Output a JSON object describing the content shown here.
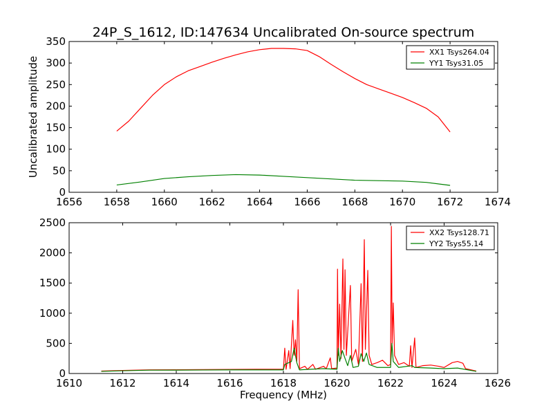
{
  "chart_data": [
    {
      "type": "line",
      "title": "24P_S_1612, ID:147634 Uncalibrated On-source spectrum",
      "xlabel": "",
      "ylabel": "Uncalibrated amplitude",
      "xlim": [
        1656,
        1674
      ],
      "ylim": [
        0,
        350
      ],
      "xticks": [
        1656,
        1658,
        1660,
        1662,
        1664,
        1666,
        1668,
        1670,
        1672,
        1674
      ],
      "yticks": [
        0,
        50,
        100,
        150,
        200,
        250,
        300,
        350
      ],
      "legend_position": "top-right",
      "series": [
        {
          "name": "XX1 Tsys264.04",
          "color": "#ff0000",
          "points": [
            [
              1658.0,
              142
            ],
            [
              1658.5,
              165
            ],
            [
              1659.0,
              195
            ],
            [
              1659.5,
              225
            ],
            [
              1660.0,
              250
            ],
            [
              1660.5,
              268
            ],
            [
              1661.0,
              282
            ],
            [
              1661.5,
              292
            ],
            [
              1662.0,
              302
            ],
            [
              1662.5,
              311
            ],
            [
              1663.0,
              319
            ],
            [
              1663.5,
              326
            ],
            [
              1664.0,
              331
            ],
            [
              1664.5,
              334
            ],
            [
              1665.0,
              334
            ],
            [
              1665.5,
              333
            ],
            [
              1666.0,
              329
            ],
            [
              1666.5,
              315
            ],
            [
              1667.0,
              297
            ],
            [
              1667.5,
              280
            ],
            [
              1668.0,
              264
            ],
            [
              1668.5,
              250
            ],
            [
              1669.0,
              240
            ],
            [
              1669.5,
              230
            ],
            [
              1670.0,
              220
            ],
            [
              1670.5,
              208
            ],
            [
              1671.0,
              195
            ],
            [
              1671.5,
              175
            ],
            [
              1672.0,
              140
            ]
          ]
        },
        {
          "name": "YY1 Tsys31.05",
          "color": "#008000",
          "points": [
            [
              1658.0,
              17
            ],
            [
              1659.0,
              24
            ],
            [
              1660.0,
              32
            ],
            [
              1661.0,
              36
            ],
            [
              1662.0,
              39
            ],
            [
              1663.0,
              41
            ],
            [
              1664.0,
              40
            ],
            [
              1665.0,
              37
            ],
            [
              1666.0,
              34
            ],
            [
              1667.0,
              31
            ],
            [
              1668.0,
              28
            ],
            [
              1669.0,
              27
            ],
            [
              1670.0,
              26
            ],
            [
              1671.0,
              23
            ],
            [
              1672.0,
              16
            ]
          ]
        }
      ]
    },
    {
      "type": "line",
      "title": "",
      "xlabel": "Frequency (MHz)",
      "ylabel": "",
      "xlim": [
        1610,
        1626
      ],
      "ylim": [
        0,
        2500
      ],
      "xticks": [
        1610,
        1612,
        1614,
        1616,
        1618,
        1620,
        1622,
        1624,
        1626
      ],
      "yticks": [
        0,
        500,
        1000,
        1500,
        2000,
        2500
      ],
      "legend_position": "top-right",
      "series": [
        {
          "name": "XX2 Tsys128.71",
          "color": "#ff0000",
          "points": [
            [
              1611.2,
              40
            ],
            [
              1612,
              50
            ],
            [
              1613,
              60
            ],
            [
              1614,
              62
            ],
            [
              1615,
              65
            ],
            [
              1616,
              68
            ],
            [
              1617,
              70
            ],
            [
              1618.0,
              70
            ],
            [
              1618.05,
              420
            ],
            [
              1618.1,
              70
            ],
            [
              1618.2,
              380
            ],
            [
              1618.25,
              80
            ],
            [
              1618.35,
              880
            ],
            [
              1618.4,
              300
            ],
            [
              1618.45,
              560
            ],
            [
              1618.5,
              200
            ],
            [
              1618.55,
              1390
            ],
            [
              1618.6,
              80
            ],
            [
              1618.8,
              120
            ],
            [
              1618.9,
              70
            ],
            [
              1619.1,
              150
            ],
            [
              1619.2,
              70
            ],
            [
              1619.5,
              120
            ],
            [
              1619.6,
              80
            ],
            [
              1619.75,
              260
            ],
            [
              1619.8,
              80
            ],
            [
              1620.0,
              90
            ],
            [
              1620.02,
              1730
            ],
            [
              1620.05,
              300
            ],
            [
              1620.1,
              1150
            ],
            [
              1620.15,
              250
            ],
            [
              1620.22,
              1900
            ],
            [
              1620.26,
              400
            ],
            [
              1620.3,
              1720
            ],
            [
              1620.35,
              300
            ],
            [
              1620.5,
              1460
            ],
            [
              1620.55,
              200
            ],
            [
              1620.7,
              400
            ],
            [
              1620.8,
              150
            ],
            [
              1620.9,
              1490
            ],
            [
              1620.95,
              200
            ],
            [
              1621.02,
              2220
            ],
            [
              1621.06,
              400
            ],
            [
              1621.15,
              1710
            ],
            [
              1621.2,
              300
            ],
            [
              1621.3,
              150
            ],
            [
              1621.5,
              180
            ],
            [
              1621.7,
              220
            ],
            [
              1621.9,
              130
            ],
            [
              1622.0,
              150
            ],
            [
              1622.03,
              2440
            ],
            [
              1622.06,
              500
            ],
            [
              1622.1,
              1170
            ],
            [
              1622.15,
              300
            ],
            [
              1622.3,
              150
            ],
            [
              1622.5,
              180
            ],
            [
              1622.7,
              120
            ],
            [
              1622.75,
              460
            ],
            [
              1622.8,
              100
            ],
            [
              1622.9,
              590
            ],
            [
              1622.95,
              100
            ],
            [
              1623.2,
              130
            ],
            [
              1623.5,
              140
            ],
            [
              1623.8,
              120
            ],
            [
              1624.0,
              100
            ],
            [
              1624.3,
              180
            ],
            [
              1624.5,
              200
            ],
            [
              1624.7,
              170
            ],
            [
              1624.8,
              80
            ],
            [
              1625.2,
              40
            ]
          ]
        },
        {
          "name": "YY2 Tsys55.14",
          "color": "#008000",
          "points": [
            [
              1611.2,
              35
            ],
            [
              1612,
              45
            ],
            [
              1613,
              55
            ],
            [
              1614,
              56
            ],
            [
              1615,
              58
            ],
            [
              1616,
              60
            ],
            [
              1617,
              60
            ],
            [
              1618.0,
              60
            ],
            [
              1618.05,
              150
            ],
            [
              1618.3,
              200
            ],
            [
              1618.4,
              420
            ],
            [
              1618.5,
              180
            ],
            [
              1618.6,
              60
            ],
            [
              1619.0,
              70
            ],
            [
              1619.5,
              80
            ],
            [
              1620.0,
              70
            ],
            [
              1620.05,
              420
            ],
            [
              1620.1,
              200
            ],
            [
              1620.2,
              380
            ],
            [
              1620.3,
              250
            ],
            [
              1620.4,
              130
            ],
            [
              1620.5,
              300
            ],
            [
              1620.6,
              100
            ],
            [
              1620.8,
              120
            ],
            [
              1620.9,
              330
            ],
            [
              1621.0,
              200
            ],
            [
              1621.1,
              340
            ],
            [
              1621.2,
              150
            ],
            [
              1621.5,
              100
            ],
            [
              1622.0,
              100
            ],
            [
              1622.05,
              500
            ],
            [
              1622.1,
              200
            ],
            [
              1622.3,
              100
            ],
            [
              1622.8,
              130
            ],
            [
              1622.9,
              100
            ],
            [
              1623.5,
              90
            ],
            [
              1624.0,
              80
            ],
            [
              1624.5,
              90
            ],
            [
              1625.2,
              35
            ]
          ]
        }
      ]
    }
  ]
}
